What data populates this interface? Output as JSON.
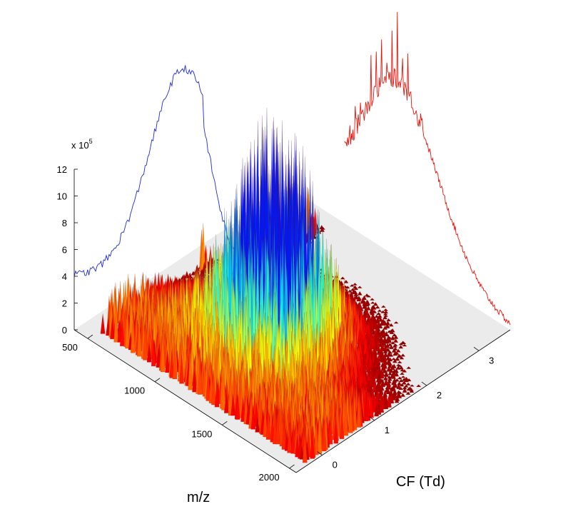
{
  "chart_data": {
    "type": "surface",
    "z_axis": {
      "multiplier_label": "x 10",
      "multiplier_exponent": "5",
      "ticks": [
        "0",
        "2",
        "4",
        "6",
        "8",
        "10",
        "12"
      ],
      "range": [
        0,
        12
      ]
    },
    "mz_axis": {
      "title": "m/z",
      "ticks": [
        "500",
        "1000",
        "1500",
        "2000"
      ],
      "range": [
        400,
        2050
      ]
    },
    "cf_axis": {
      "title": "CF (Td)",
      "ticks": [
        "0",
        "1",
        "2",
        "3"
      ],
      "range": [
        -0.5,
        3.6
      ]
    },
    "colormap": "jet",
    "projections": [
      {
        "axis": "m/z",
        "color": "#1f2bd6"
      },
      {
        "axis": "CF (Td)",
        "color": "#e8140c"
      }
    ],
    "surface_peak": {
      "mz": 1250,
      "cf": 1.2,
      "intensity": 12
    }
  }
}
